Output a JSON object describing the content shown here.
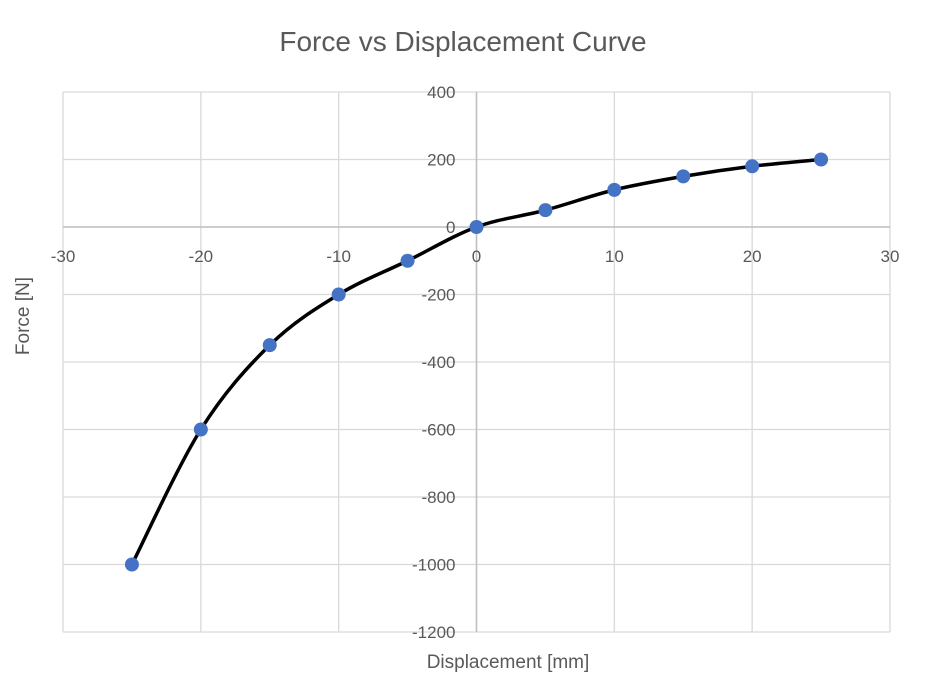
{
  "chart_data": {
    "type": "scatter",
    "title": "Force vs Displacement Curve",
    "xlabel": "Displacement [mm]",
    "ylabel": "Force [N]",
    "xlim": [
      -30,
      30
    ],
    "ylim": [
      -1200,
      400
    ],
    "xticks": [
      -30,
      -20,
      -10,
      0,
      10,
      20,
      30
    ],
    "yticks": [
      -1200,
      -1000,
      -800,
      -600,
      -400,
      -200,
      0,
      200,
      400
    ],
    "grid": true,
    "legend": "none",
    "series": [
      {
        "x": [
          -25,
          -20,
          -15,
          -10,
          -5,
          0,
          5,
          10,
          15,
          20,
          25
        ],
        "y": [
          -1000,
          -600,
          -350,
          -200,
          -100,
          0,
          50,
          110,
          150,
          180,
          200
        ],
        "line_color": "#000000",
        "marker_color": "#4472C4",
        "smooth": true
      }
    ]
  }
}
